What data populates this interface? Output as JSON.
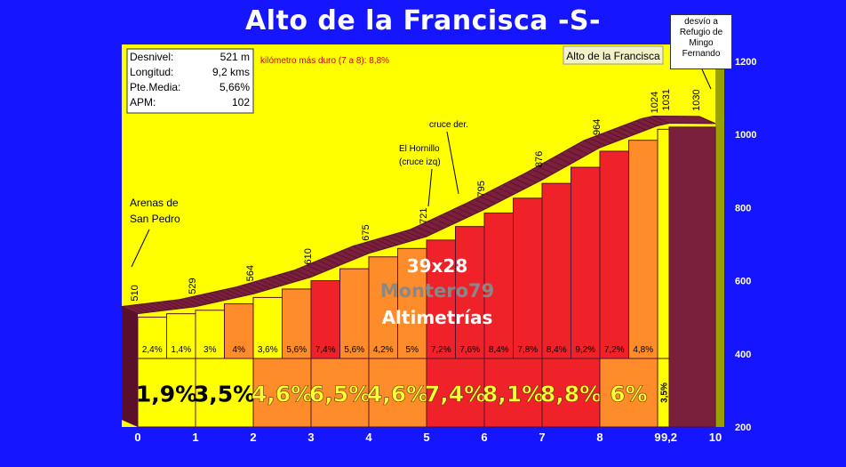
{
  "title": "Alto de la Francisca -S-",
  "summit_box": [
    "desvío a",
    "Refugio de",
    "Mingo",
    "Fernando"
  ],
  "stats": [
    {
      "label": "Desnivel:",
      "value": "521 m"
    },
    {
      "label": "Longitud:",
      "value": "9,2 kms"
    },
    {
      "label": "Pte.Media:",
      "value": "5,66%"
    },
    {
      "label": "APM:",
      "value": "102"
    }
  ],
  "hardest_km": "kilómetro más duro (7 a 8):  8,8%",
  "summit_label": "Alto de la Francisca",
  "watermark": {
    "gear": "39x28",
    "author": "Montero79",
    "brand": "Altimetrías"
  },
  "colors": {
    "yellow": "#ffff00",
    "orange": "#ff8c2a",
    "red": "#ee2228",
    "maroon": "#7a1f3c",
    "maroon_dark": "#5a1028",
    "blue": "#1515ff"
  },
  "chart_data": {
    "type": "area",
    "x_label": "",
    "y_label": "",
    "xlim": [
      0,
      10
    ],
    "ylim": [
      200,
      1200
    ],
    "x_ticks": [
      "0",
      "1",
      "2",
      "3",
      "4",
      "5",
      "6",
      "7",
      "8",
      "9",
      "9,2",
      "10"
    ],
    "x_tick_values": [
      0,
      1,
      2,
      3,
      4,
      5,
      6,
      7,
      8,
      9,
      9.2,
      10
    ],
    "y_ticks": [
      200,
      400,
      600,
      800,
      1000,
      1200
    ],
    "profile": [
      {
        "km": 0,
        "alt": 510
      },
      {
        "km": 1,
        "alt": 529
      },
      {
        "km": 2,
        "alt": 564
      },
      {
        "km": 3,
        "alt": 610
      },
      {
        "km": 4,
        "alt": 675
      },
      {
        "km": 5,
        "alt": 721
      },
      {
        "km": 6,
        "alt": 795
      },
      {
        "km": 7,
        "alt": 876
      },
      {
        "km": 8,
        "alt": 964
      },
      {
        "km": 9,
        "alt": 1024
      },
      {
        "km": 9.2,
        "alt": 1031
      },
      {
        "km": 10,
        "alt": 1030
      }
    ],
    "alt_labels": [
      {
        "km": 0,
        "text": "510"
      },
      {
        "km": 1,
        "text": "529"
      },
      {
        "km": 2,
        "text": "564"
      },
      {
        "km": 3,
        "text": "610"
      },
      {
        "km": 4,
        "text": "675"
      },
      {
        "km": 5,
        "text": "721"
      },
      {
        "km": 6,
        "text": "795"
      },
      {
        "km": 7,
        "text": "876"
      },
      {
        "km": 8,
        "text": "964"
      },
      {
        "km": 9,
        "text": "1024"
      },
      {
        "km": 9.2,
        "text": "1031"
      },
      {
        "km": 10,
        "text": "1030"
      }
    ],
    "half_km_segments": [
      {
        "from": 0,
        "to": 0.5,
        "grade": "2,4%",
        "color": "yellow"
      },
      {
        "from": 0.5,
        "to": 1,
        "grade": "1,4%",
        "color": "yellow"
      },
      {
        "from": 1,
        "to": 1.5,
        "grade": "3%",
        "color": "yellow"
      },
      {
        "from": 1.5,
        "to": 2,
        "grade": "4%",
        "color": "orange"
      },
      {
        "from": 2,
        "to": 2.5,
        "grade": "3,6%",
        "color": "yellow"
      },
      {
        "from": 2.5,
        "to": 3,
        "grade": "5,6%",
        "color": "orange"
      },
      {
        "from": 3,
        "to": 3.5,
        "grade": "7,4%",
        "color": "red"
      },
      {
        "from": 3.5,
        "to": 4,
        "grade": "5,6%",
        "color": "orange"
      },
      {
        "from": 4,
        "to": 4.5,
        "grade": "4,2%",
        "color": "orange"
      },
      {
        "from": 4.5,
        "to": 5,
        "grade": "5%",
        "color": "orange"
      },
      {
        "from": 5,
        "to": 5.5,
        "grade": "7,2%",
        "color": "red"
      },
      {
        "from": 5.5,
        "to": 6,
        "grade": "7,6%",
        "color": "red"
      },
      {
        "from": 6,
        "to": 6.5,
        "grade": "8,4%",
        "color": "red"
      },
      {
        "from": 6.5,
        "to": 7,
        "grade": "7,8%",
        "color": "red"
      },
      {
        "from": 7,
        "to": 7.5,
        "grade": "8,4%",
        "color": "red"
      },
      {
        "from": 7.5,
        "to": 8,
        "grade": "9,2%",
        "color": "red"
      },
      {
        "from": 8,
        "to": 8.5,
        "grade": "7,2%",
        "color": "red"
      },
      {
        "from": 8.5,
        "to": 9,
        "grade": "4,8%",
        "color": "orange"
      },
      {
        "from": 9,
        "to": 9.2,
        "grade": "",
        "color": "yellow"
      }
    ],
    "km_segments": [
      {
        "from": 0,
        "to": 1,
        "grade": "1,9%",
        "color": "yellow"
      },
      {
        "from": 1,
        "to": 2,
        "grade": "3,5%",
        "color": "yellow"
      },
      {
        "from": 2,
        "to": 3,
        "grade": "4,6%",
        "color": "orange"
      },
      {
        "from": 3,
        "to": 4,
        "grade": "6,5%",
        "color": "orange"
      },
      {
        "from": 4,
        "to": 5,
        "grade": "4,6%",
        "color": "orange"
      },
      {
        "from": 5,
        "to": 6,
        "grade": "7,4%",
        "color": "red"
      },
      {
        "from": 6,
        "to": 7,
        "grade": "8,1%",
        "color": "red"
      },
      {
        "from": 7,
        "to": 8,
        "grade": "8,8%",
        "color": "red"
      },
      {
        "from": 8,
        "to": 9,
        "grade": "6%",
        "color": "orange"
      },
      {
        "from": 9,
        "to": 9.2,
        "grade": "3,5%",
        "color": "yellow"
      }
    ],
    "annotations": [
      {
        "km": 0,
        "lines": [
          "Arenas de",
          "San Pedro"
        ]
      },
      {
        "km": 4.5,
        "lines": [
          "El Hornillo",
          "(cruce izq)"
        ]
      },
      {
        "km": 5.3,
        "lines": [
          "cruce der."
        ]
      }
    ]
  }
}
